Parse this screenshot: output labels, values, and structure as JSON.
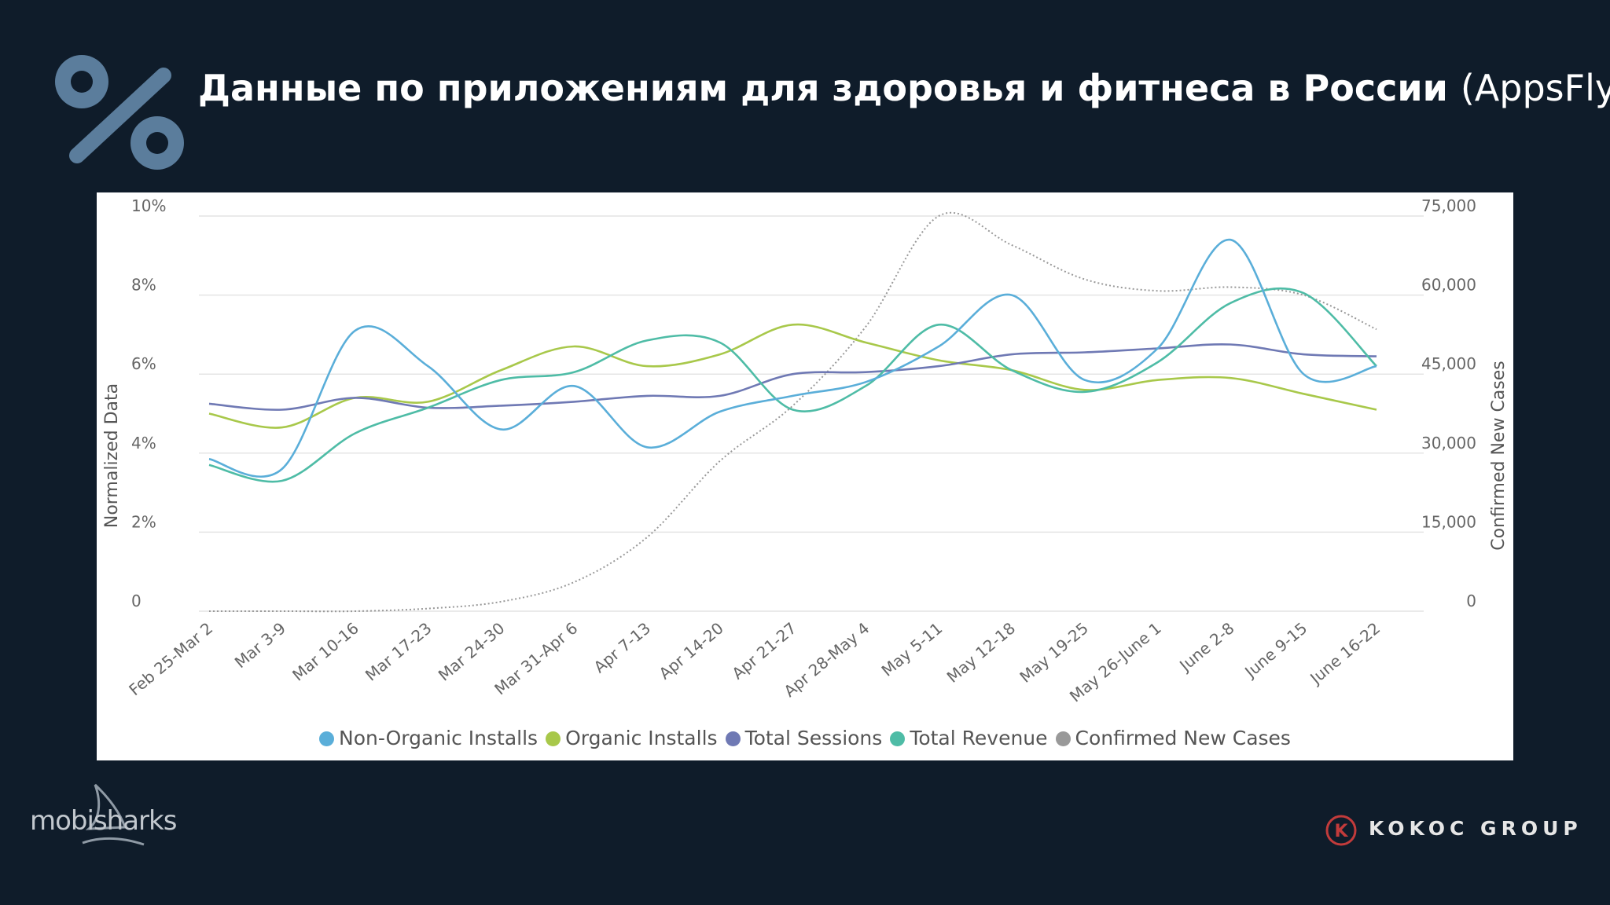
{
  "header": {
    "title_bold": "Данные по приложениям для здоровья и фитнеса в России",
    "title_suffix": "(AppsFlyer)"
  },
  "chart_data": {
    "type": "line",
    "categories": [
      "Feb 25-Mar 2",
      "Mar 3-9",
      "Mar 10-16",
      "Mar 17-23",
      "Mar 24-30",
      "Mar 31-Apr 6",
      "Apr 7-13",
      "Apr 14-20",
      "Apr 21-27",
      "Apr 28-May 4",
      "May 5-11",
      "May 12-18",
      "May 19-25",
      "May 26-June 1",
      "June 2-8",
      "June 9-15",
      "June 16-22"
    ],
    "ylabel": "Normalized Data",
    "y2label": "Confirmed New Cases",
    "ylim": [
      0,
      10
    ],
    "y2lim": [
      0,
      75000
    ],
    "yticks": [
      "0",
      "2%",
      "4%",
      "6%",
      "8%",
      "10%"
    ],
    "y2ticks": [
      "0",
      "15,000",
      "30,000",
      "45,000",
      "60,000",
      "75,000"
    ],
    "grid": true,
    "legend_position": "bottom",
    "series": [
      {
        "name": "Non-Organic Installs",
        "axis": "left",
        "color": "#5aaed9",
        "values": [
          3.85,
          3.6,
          7.1,
          6.2,
          4.6,
          5.7,
          4.15,
          5.05,
          5.45,
          5.8,
          6.7,
          8.0,
          5.85,
          6.65,
          9.4,
          6.0,
          6.2
        ]
      },
      {
        "name": "Organic Installs",
        "axis": "left",
        "color": "#a8c84a",
        "values": [
          5.0,
          4.65,
          5.4,
          5.3,
          6.1,
          6.7,
          6.2,
          6.5,
          7.25,
          6.8,
          6.35,
          6.1,
          5.6,
          5.85,
          5.9,
          5.5,
          5.1
        ]
      },
      {
        "name": "Total Sessions",
        "axis": "left",
        "color": "#6f79b4",
        "values": [
          5.25,
          5.1,
          5.4,
          5.15,
          5.2,
          5.3,
          5.45,
          5.45,
          6.0,
          6.05,
          6.2,
          6.5,
          6.55,
          6.65,
          6.75,
          6.5,
          6.45
        ]
      },
      {
        "name": "Total Revenue",
        "axis": "left",
        "color": "#4ebca6",
        "values": [
          3.7,
          3.3,
          4.5,
          5.15,
          5.85,
          6.05,
          6.85,
          6.8,
          5.1,
          5.7,
          7.25,
          6.1,
          5.55,
          6.3,
          7.8,
          8.05,
          6.2
        ]
      },
      {
        "name": "Confirmed New Cases",
        "axis": "right",
        "color": "#999999",
        "dashed": true,
        "values": [
          0,
          0,
          0,
          500,
          1800,
          5500,
          14000,
          28500,
          39000,
          54000,
          75000,
          69500,
          63000,
          60800,
          61500,
          60000,
          53500
        ]
      }
    ]
  },
  "branding": {
    "left_logo_text": "mobisharks",
    "right_logo_text": "KOKOC GROUP",
    "right_logo_mark": "K"
  }
}
